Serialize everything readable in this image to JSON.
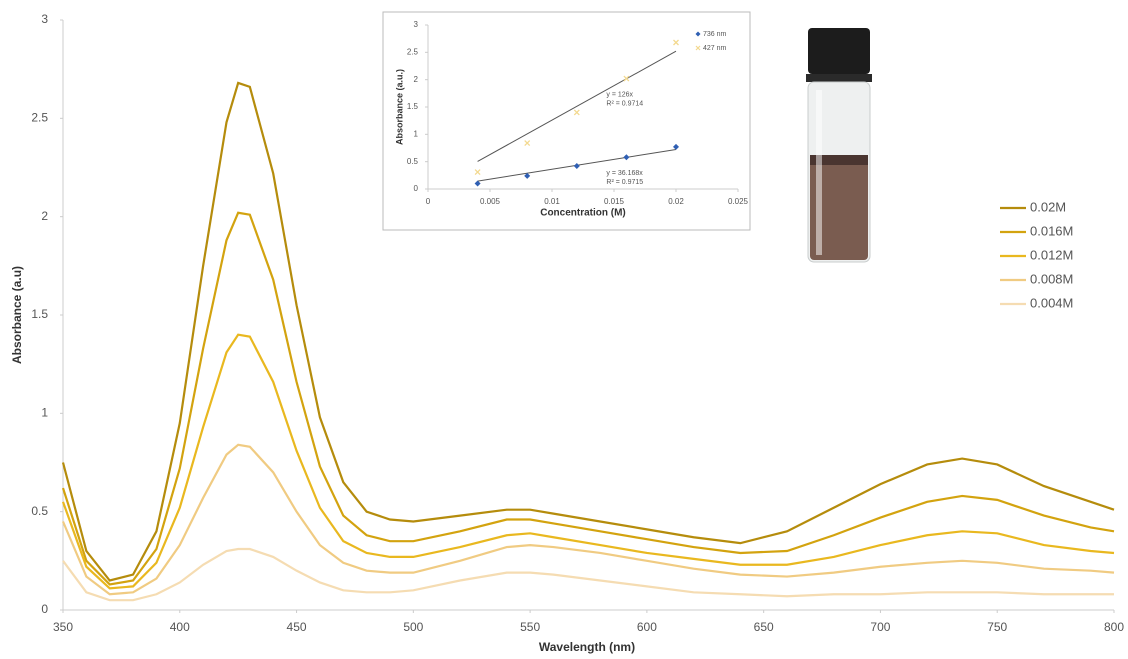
{
  "chart_data": [
    {
      "type": "line",
      "x_label": "Wavelength (nm)",
      "y_label": "Absorbance (a.u)",
      "x": [
        350,
        360,
        370,
        380,
        390,
        400,
        410,
        420,
        425,
        430,
        440,
        450,
        460,
        470,
        480,
        490,
        500,
        520,
        540,
        550,
        560,
        580,
        600,
        620,
        640,
        660,
        680,
        700,
        720,
        735,
        750,
        770,
        790,
        800
      ],
      "series": [
        {
          "name": "0.02M",
          "color": "#b58c0c",
          "values": [
            0.75,
            0.3,
            0.15,
            0.18,
            0.4,
            0.95,
            1.75,
            2.48,
            2.68,
            2.66,
            2.22,
            1.55,
            0.98,
            0.65,
            0.5,
            0.46,
            0.45,
            0.48,
            0.51,
            0.51,
            0.49,
            0.45,
            0.41,
            0.37,
            0.34,
            0.4,
            0.52,
            0.64,
            0.74,
            0.77,
            0.74,
            0.63,
            0.55,
            0.51
          ]
        },
        {
          "name": "0.016M",
          "color": "#d3a30f",
          "values": [
            0.62,
            0.25,
            0.13,
            0.15,
            0.31,
            0.72,
            1.33,
            1.88,
            2.02,
            2.01,
            1.68,
            1.16,
            0.73,
            0.48,
            0.38,
            0.35,
            0.35,
            0.4,
            0.46,
            0.46,
            0.44,
            0.4,
            0.36,
            0.32,
            0.29,
            0.3,
            0.38,
            0.47,
            0.55,
            0.58,
            0.56,
            0.48,
            0.42,
            0.4
          ]
        },
        {
          "name": "0.012M",
          "color": "#e9b81f",
          "values": [
            0.55,
            0.22,
            0.11,
            0.12,
            0.24,
            0.52,
            0.93,
            1.31,
            1.4,
            1.39,
            1.16,
            0.81,
            0.52,
            0.35,
            0.29,
            0.27,
            0.27,
            0.32,
            0.38,
            0.39,
            0.37,
            0.33,
            0.29,
            0.26,
            0.23,
            0.23,
            0.27,
            0.33,
            0.38,
            0.4,
            0.39,
            0.33,
            0.3,
            0.29
          ]
        },
        {
          "name": "0.008M",
          "color": "#f0cb82",
          "values": [
            0.45,
            0.17,
            0.08,
            0.09,
            0.16,
            0.33,
            0.57,
            0.79,
            0.84,
            0.83,
            0.7,
            0.5,
            0.33,
            0.24,
            0.2,
            0.19,
            0.19,
            0.25,
            0.32,
            0.33,
            0.32,
            0.29,
            0.25,
            0.21,
            0.18,
            0.17,
            0.19,
            0.22,
            0.24,
            0.25,
            0.24,
            0.21,
            0.2,
            0.19
          ]
        },
        {
          "name": "0.004M",
          "color": "#f5dcb2",
          "values": [
            0.25,
            0.09,
            0.05,
            0.05,
            0.08,
            0.14,
            0.23,
            0.3,
            0.31,
            0.31,
            0.27,
            0.2,
            0.14,
            0.1,
            0.09,
            0.09,
            0.1,
            0.15,
            0.19,
            0.19,
            0.18,
            0.15,
            0.12,
            0.09,
            0.08,
            0.07,
            0.08,
            0.08,
            0.09,
            0.09,
            0.09,
            0.08,
            0.08,
            0.08
          ]
        }
      ],
      "xlim": [
        350,
        800
      ],
      "xticks": [
        350,
        400,
        450,
        500,
        550,
        600,
        650,
        700,
        750,
        800
      ],
      "ylim": [
        0,
        3
      ],
      "yticks": [
        0,
        0.5,
        1,
        1.5,
        2,
        2.5,
        3
      ],
      "legend": "right"
    },
    {
      "type": "scatter",
      "x_label": "Concentration (M)",
      "y_label": "Absorbance (a.u.)",
      "x": [
        0.004,
        0.008,
        0.012,
        0.016,
        0.02
      ],
      "series": [
        {
          "name": "736 nm",
          "color": "#2f5fb3",
          "marker": "diamond",
          "values": [
            0.1,
            0.24,
            0.42,
            0.58,
            0.77
          ]
        },
        {
          "name": "427 nm",
          "color": "#f3d98f",
          "marker": "x",
          "values": [
            0.31,
            0.84,
            1.4,
            2.02,
            2.68
          ]
        }
      ],
      "trendlines": [
        {
          "slope": 36.168,
          "equation": "y = 36.168x",
          "r2": "R² = 0.9715"
        },
        {
          "slope": 126,
          "equation": "y = 126x",
          "r2": "R² = 0.9714"
        }
      ],
      "xlim": [
        0,
        0.025
      ],
      "xticks": [
        0,
        0.005,
        0.01,
        0.015,
        0.02,
        0.025
      ],
      "ylim": [
        0,
        3
      ],
      "yticks": [
        0,
        0.5,
        1,
        1.5,
        2,
        2.5,
        3
      ],
      "legend": "top-right"
    }
  ]
}
